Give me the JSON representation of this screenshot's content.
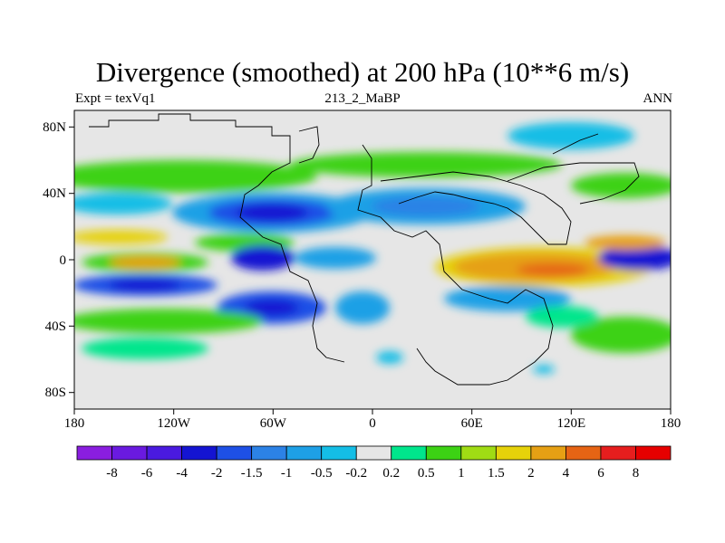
{
  "title": "Divergence (smoothed) at 200 hPa (10**6 m/s)",
  "subtitle": {
    "left": "Expt = texVq1",
    "center": "213_2_MaBP",
    "right": "ANN"
  },
  "axes": {
    "lon_labels": [
      "180",
      "120W",
      "60W",
      "0",
      "60E",
      "120E",
      "180"
    ],
    "lat_labels": [
      "80N",
      "40N",
      "0",
      "40S",
      "80S"
    ]
  },
  "colors": {
    "background": "#e6e6e6",
    "coast": "#000000"
  },
  "colorbar": {
    "labels": [
      "-8",
      "-6",
      "-4",
      "-2",
      "-1.5",
      "-1",
      "-0.5",
      "-0.2",
      "0.2",
      "0.5",
      "1",
      "1.5",
      "2",
      "4",
      "6",
      "8"
    ],
    "colors": [
      "#8a1ee0",
      "#6a1ae0",
      "#4a1ae0",
      "#1414d2",
      "#1e50e6",
      "#2c82e6",
      "#1ea0e6",
      "#14bee6",
      "#e6e6e6",
      "#00e68c",
      "#3cd214",
      "#a0dc14",
      "#e6d20a",
      "#e6a014",
      "#e66414",
      "#e61e1e",
      "#e60000"
    ]
  }
}
